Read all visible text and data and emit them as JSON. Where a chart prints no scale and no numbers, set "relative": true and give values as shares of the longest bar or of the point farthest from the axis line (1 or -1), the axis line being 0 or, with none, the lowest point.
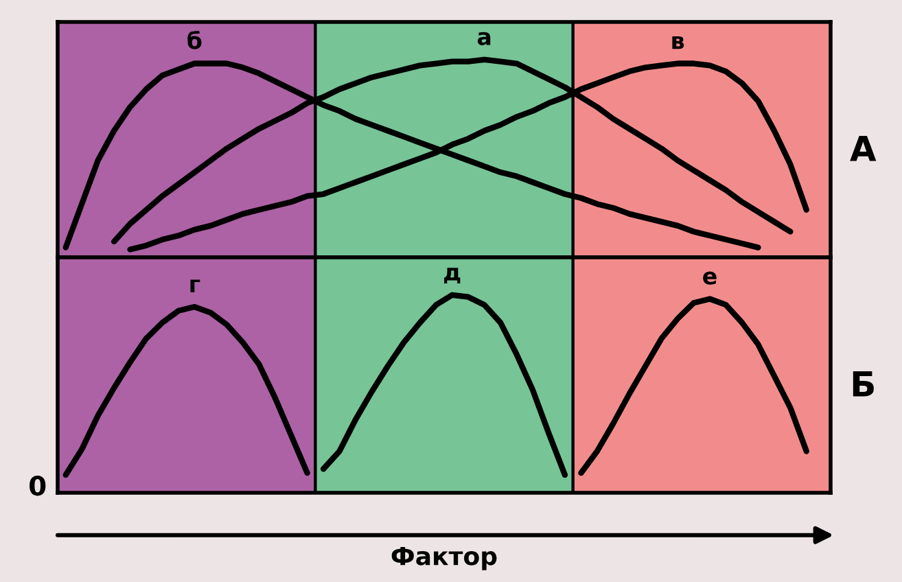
{
  "chart_data": [
    {
      "type": "line",
      "ylabel": "А",
      "relative": true,
      "tick_labels": false,
      "categories": [
        null,
        null,
        null,
        null,
        null,
        null,
        null,
        null,
        null,
        null,
        null,
        null,
        null,
        null,
        null,
        null,
        null,
        null,
        null,
        null,
        null,
        null,
        null,
        null,
        null,
        null,
        null,
        null,
        null,
        null,
        null,
        null,
        null,
        null,
        null,
        null,
        null,
        null,
        null,
        null,
        null,
        null,
        null,
        null,
        null,
        null,
        null,
        null
      ],
      "series": [
        {
          "name": "б",
          "color": "#000000",
          "values": [
            0.05,
            0.27,
            0.49,
            0.64,
            0.76,
            0.85,
            0.92,
            0.95,
            0.98,
            0.98,
            0.98,
            0.96,
            0.93,
            0.89,
            0.85,
            0.81,
            0.77,
            0.74,
            0.7,
            0.67,
            0.64,
            0.61,
            0.58,
            0.55,
            0.52,
            0.49,
            0.46,
            0.43,
            0.41,
            0.38,
            0.35,
            0.32,
            0.3,
            0.27,
            0.25,
            0.22,
            0.2,
            0.18,
            0.16,
            0.13,
            0.11,
            0.09,
            0.07,
            0.05,
            null,
            null,
            null,
            null
          ]
        },
        {
          "name": "а",
          "color": "#000000",
          "values": [
            null,
            null,
            null,
            0.08,
            0.17,
            0.24,
            0.31,
            0.37,
            0.43,
            0.49,
            0.55,
            0.6,
            0.65,
            0.69,
            0.73,
            0.78,
            0.81,
            0.85,
            0.88,
            0.91,
            0.93,
            0.95,
            0.97,
            0.98,
            0.99,
            0.99,
            1.0,
            0.99,
            0.98,
            0.94,
            0.9,
            0.86,
            0.81,
            0.76,
            0.7,
            0.65,
            0.6,
            0.55,
            0.49,
            0.44,
            0.39,
            0.34,
            0.28,
            0.23,
            0.18,
            0.13,
            null,
            null
          ]
        },
        {
          "name": "в",
          "color": "#000000",
          "values": [
            null,
            null,
            null,
            null,
            0.04,
            0.06,
            0.09,
            0.11,
            0.14,
            0.16,
            0.19,
            0.22,
            0.24,
            0.26,
            0.28,
            0.31,
            0.32,
            0.35,
            0.38,
            0.41,
            0.44,
            0.47,
            0.5,
            0.53,
            0.57,
            0.6,
            0.64,
            0.67,
            0.71,
            0.74,
            0.78,
            0.81,
            0.85,
            0.88,
            0.91,
            0.94,
            0.96,
            0.97,
            0.98,
            0.98,
            0.97,
            0.94,
            0.88,
            0.79,
            0.64,
            0.47,
            0.24,
            null
          ]
        }
      ]
    },
    {
      "type": "line",
      "ylabel": "Б",
      "xlabel": "Фактор",
      "annotations": [
        "0"
      ],
      "relative": true,
      "tick_labels": false,
      "categories": [
        null,
        null,
        null,
        null,
        null,
        null,
        null,
        null,
        null,
        null,
        null,
        null,
        null,
        null,
        null,
        null,
        null,
        null,
        null,
        null,
        null,
        null,
        null,
        null,
        null,
        null,
        null,
        null,
        null,
        null,
        null,
        null,
        null,
        null,
        null,
        null,
        null,
        null,
        null,
        null,
        null,
        null,
        null,
        null,
        null,
        null,
        null,
        null
      ],
      "series": [
        {
          "name": "г",
          "color": "#000000",
          "values": [
            0.09,
            0.22,
            0.39,
            0.53,
            0.66,
            0.78,
            0.86,
            0.92,
            0.94,
            0.91,
            0.85,
            0.76,
            0.65,
            0.48,
            0.29,
            0.1,
            null,
            null,
            null,
            null,
            null,
            null,
            null,
            null,
            null,
            null,
            null,
            null,
            null,
            null,
            null,
            null,
            null,
            null,
            null,
            null,
            null,
            null,
            null,
            null,
            null,
            null,
            null,
            null,
            null,
            null,
            null,
            null
          ]
        },
        {
          "name": "д",
          "color": "#000000",
          "values": [
            null,
            null,
            null,
            null,
            null,
            null,
            null,
            null,
            null,
            null,
            null,
            null,
            null,
            null,
            null,
            null,
            0.12,
            0.21,
            0.37,
            0.51,
            0.64,
            0.76,
            0.86,
            0.95,
            1.0,
            0.99,
            0.95,
            0.86,
            0.7,
            0.52,
            0.3,
            0.09,
            null,
            null,
            null,
            null,
            null,
            null,
            null,
            null,
            null,
            null,
            null,
            null,
            null,
            null,
            null,
            null
          ]
        },
        {
          "name": "е",
          "color": "#000000",
          "values": [
            null,
            null,
            null,
            null,
            null,
            null,
            null,
            null,
            null,
            null,
            null,
            null,
            null,
            null,
            null,
            null,
            null,
            null,
            null,
            null,
            null,
            null,
            null,
            null,
            null,
            null,
            null,
            null,
            null,
            null,
            null,
            null,
            0.1,
            0.21,
            0.35,
            0.5,
            0.64,
            0.78,
            0.88,
            0.96,
            0.98,
            0.95,
            0.86,
            0.75,
            0.59,
            0.43,
            0.21,
            null
          ]
        }
      ]
    }
  ]
}
